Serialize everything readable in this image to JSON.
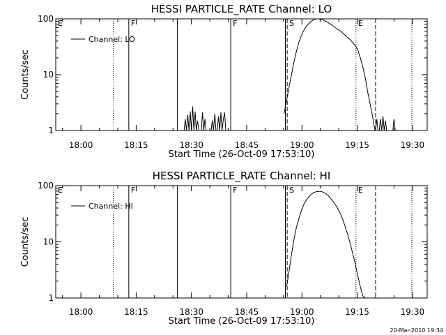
{
  "chart_data": [
    {
      "type": "line",
      "title": "HESSI PARTICLE_RATE Channel: LO",
      "xlabel": "Start Time (26-Oct-09 17:53:10)",
      "ylabel": "Counts/sec",
      "yscale": "log",
      "ylim": [
        1,
        100
      ],
      "xlim": [
        "17:53:10",
        "19:34:00"
      ],
      "xticks": [
        "18:00",
        "18:15",
        "18:30",
        "18:45",
        "19:00",
        "19:15",
        "19:30"
      ],
      "yticks": [
        "1",
        "10",
        "100"
      ],
      "legend": {
        "label": "Channel: LO",
        "placement": "top-left"
      },
      "markers": [
        {
          "label": "E",
          "time": "17:53:10",
          "style": "label-only"
        },
        {
          "label": "",
          "time": "18:08:50",
          "style": "dotted"
        },
        {
          "label": "F",
          "time": "18:13:00",
          "style": "solid"
        },
        {
          "label": "",
          "time": "18:26:10",
          "style": "solid"
        },
        {
          "label": "F",
          "time": "18:40:40",
          "style": "solid"
        },
        {
          "label": "",
          "time": "18:55:30",
          "style": "solid"
        },
        {
          "label": "S",
          "time": "18:56:00",
          "style": "dashed"
        },
        {
          "label": "E",
          "time": "19:14:40",
          "style": "dotted"
        },
        {
          "label": "",
          "time": "19:20:00",
          "style": "dashed"
        },
        {
          "label": "",
          "time": "19:29:50",
          "style": "dotted"
        }
      ],
      "series": [
        {
          "x": [
            "18:28:00",
            "18:28:20",
            "18:28:40",
            "18:29:00",
            "18:29:20",
            "18:29:40",
            "18:30:00",
            "18:30:20",
            "18:30:40",
            "18:31:00",
            "18:31:20",
            "18:31:40",
            "18:32:00",
            "18:32:20",
            "18:32:40",
            "18:33:00",
            "18:33:20",
            "18:33:40",
            "18:34:00",
            "18:34:20",
            "18:34:40",
            "18:35:00",
            "18:35:20",
            "18:35:40",
            "18:36:00",
            "18:36:20",
            "18:36:40",
            "18:37:00",
            "18:37:20",
            "18:37:40",
            "18:38:00",
            "18:38:20",
            "18:38:40",
            "18:39:00",
            "18:39:20"
          ],
          "y": [
            1,
            1.6,
            1,
            1.9,
            1,
            2.2,
            1,
            2.7,
            1,
            2.2,
            1,
            1.5,
            1,
            1,
            1,
            2.1,
            1,
            1.6,
            1,
            1,
            1,
            1,
            1,
            1.5,
            1,
            2,
            1,
            1,
            1.8,
            1,
            2.1,
            1,
            1.6,
            2.1,
            1
          ]
        },
        {
          "x": [
            "18:55:10",
            "18:55:50",
            "18:56:30",
            "18:57:10",
            "18:57:50",
            "18:58:30",
            "18:59:10",
            "18:59:50",
            "19:00:30",
            "19:01:10",
            "19:01:50",
            "19:02:30",
            "19:03:10",
            "19:03:50",
            "19:04:30",
            "19:05:10",
            "19:05:50",
            "19:06:30",
            "19:07:10",
            "19:07:50",
            "19:08:30",
            "19:09:10",
            "19:09:50",
            "19:10:30",
            "19:11:10",
            "19:11:50",
            "19:12:30",
            "19:13:10",
            "19:13:50",
            "19:14:30",
            "19:15:10",
            "19:15:50",
            "19:16:30",
            "19:17:10",
            "19:17:50",
            "19:18:30",
            "19:19:10",
            "19:19:50"
          ],
          "y": [
            2,
            3.5,
            6,
            10,
            17,
            26,
            38,
            50,
            62,
            73,
            82,
            90,
            96,
            100,
            100,
            98,
            95,
            90,
            85,
            80,
            74,
            69,
            64,
            60,
            55,
            50,
            46,
            42,
            37,
            33,
            28,
            20,
            14,
            9,
            5,
            3,
            1.8,
            1
          ]
        },
        {
          "x": [
            "19:20:00",
            "19:20:20",
            "19:20:40",
            "19:21:00",
            "19:21:20",
            "19:21:40",
            "19:22:00",
            "19:22:20",
            "19:22:40",
            "19:23:00",
            "19:23:20",
            "19:23:40",
            "19:24:00",
            "19:24:20",
            "19:24:40",
            "19:25:00",
            "19:25:20",
            "19:25:40"
          ],
          "y": [
            1,
            1.6,
            1,
            1,
            1.6,
            1,
            1.8,
            1,
            1.5,
            1,
            1,
            1,
            1,
            1,
            1,
            1.6,
            1,
            1
          ]
        }
      ]
    },
    {
      "type": "line",
      "title": "HESSI PARTICLE_RATE Channel: HI",
      "xlabel": "Start Time (26-Oct-09 17:53:10)",
      "ylabel": "Counts/sec",
      "yscale": "log",
      "ylim": [
        1,
        100
      ],
      "xlim": [
        "17:53:10",
        "19:34:00"
      ],
      "xticks": [
        "18:00",
        "18:15",
        "18:30",
        "18:45",
        "19:00",
        "19:15",
        "19:30"
      ],
      "yticks": [
        "1",
        "10",
        "100"
      ],
      "legend": {
        "label": "Channel: HI",
        "placement": "top-left"
      },
      "markers": [
        {
          "label": "E",
          "time": "17:53:10",
          "style": "label-only"
        },
        {
          "label": "",
          "time": "18:08:50",
          "style": "dotted"
        },
        {
          "label": "F",
          "time": "18:13:00",
          "style": "solid"
        },
        {
          "label": "",
          "time": "18:26:10",
          "style": "solid"
        },
        {
          "label": "F",
          "time": "18:40:40",
          "style": "solid"
        },
        {
          "label": "",
          "time": "18:55:30",
          "style": "solid"
        },
        {
          "label": "S",
          "time": "18:56:00",
          "style": "dashed"
        },
        {
          "label": "E",
          "time": "19:14:40",
          "style": "dotted"
        },
        {
          "label": "",
          "time": "19:20:00",
          "style": "dashed"
        },
        {
          "label": "",
          "time": "19:29:50",
          "style": "dotted"
        }
      ],
      "series": [
        {
          "x": [
            "18:55:50",
            "18:56:30",
            "18:57:10",
            "18:57:50",
            "18:58:30",
            "18:59:10",
            "18:59:50",
            "19:00:30",
            "19:01:10",
            "19:01:50",
            "19:02:30",
            "19:03:10",
            "19:03:50",
            "19:04:30",
            "19:05:10",
            "19:05:50",
            "19:06:30",
            "19:07:10",
            "19:07:50",
            "19:08:30",
            "19:09:10",
            "19:09:50",
            "19:10:30",
            "19:11:10",
            "19:11:50",
            "19:12:30",
            "19:13:10",
            "19:13:50",
            "19:14:30",
            "19:15:10",
            "19:15:50",
            "19:16:30",
            "19:17:10"
          ],
          "y": [
            1.6,
            3,
            6,
            11,
            18,
            26,
            36,
            46,
            55,
            63,
            70,
            75,
            78,
            79,
            79,
            76,
            72,
            66,
            59,
            52,
            45,
            38,
            31,
            24,
            18,
            13,
            9,
            6,
            4,
            2.5,
            1.6,
            1.1,
            1
          ]
        }
      ]
    }
  ],
  "timestamp": "20-Mar-2010 19:34"
}
